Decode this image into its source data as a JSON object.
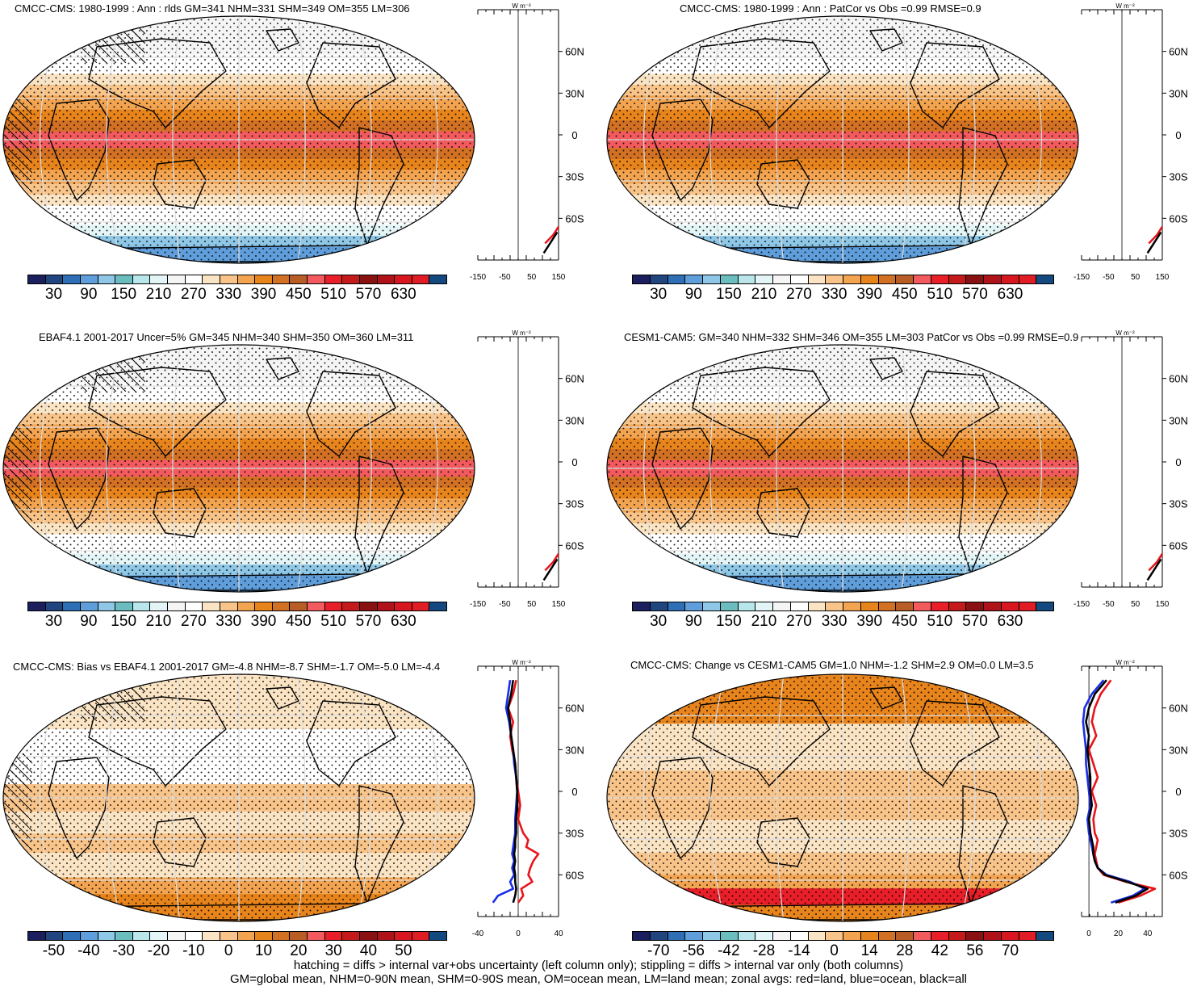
{
  "panels": [
    {
      "title": "CMCC-CMS: 1980-1999 : Ann : rlds GM=341 NHM=331 SHM=349 OM=355 LM=306",
      "colorbar": "abs",
      "kind": "abs",
      "hatch": true
    },
    {
      "title": "CMCC-CMS: 1980-1999 : Ann : PatCor vs Obs =0.99 RMSE=0.9",
      "colorbar": "abs",
      "kind": "abs",
      "hatch": false
    },
    {
      "title": "EBAF4.1 2001-2017 Uncer=5% GM=345 NHM=340 SHM=350 OM=360 LM=311",
      "colorbar": "abs",
      "kind": "abs",
      "hatch": true
    },
    {
      "title": "CESM1-CAM5: GM=340 NHM=332 SHM=346 OM=355 LM=303 PatCor vs Obs =0.99 RMSE=0.9",
      "colorbar": "abs",
      "kind": "abs",
      "hatch": false
    },
    {
      "title": "CMCC-CMS: Bias vs EBAF4.1 2001-2017 GM=-4.8 NHM=-8.7 SHM=-1.7 OM=-5.0 LM=-4.4",
      "colorbar": "bias",
      "kind": "bias",
      "hatch": true
    },
    {
      "title": "CMCC-CMS: Change vs CESM1-CAM5 GM=1.0 NHM=-1.2 SHM=2.9 OM=0.0 LM=3.5",
      "colorbar": "change",
      "kind": "change",
      "hatch": false
    }
  ],
  "colorbars": {
    "abs": {
      "labels": [
        "30",
        "90",
        "150",
        "210",
        "270",
        "330",
        "390",
        "450",
        "510",
        "570",
        "630"
      ],
      "colors": [
        "#1b1f5e",
        "#21457f",
        "#2e6fb6",
        "#5f9edb",
        "#8fc7e6",
        "#6bbdc0",
        "#b8e6ea",
        "#e3f5f6",
        "#f5f5f5",
        "#ffffff",
        "#fbe4c4",
        "#f8c48a",
        "#f3a451",
        "#e8841c",
        "#d27024",
        "#b85d25",
        "#f25a5e",
        "#e81f29",
        "#c51a1b",
        "#8a1111",
        "#b0121a",
        "#d8161f",
        "#e01c24",
        "#13497f"
      ]
    },
    "bias": {
      "labels": [
        "-50",
        "-40",
        "-30",
        "-20",
        "-10",
        "0",
        "10",
        "20",
        "30",
        "40",
        "50"
      ],
      "colors": [
        "#1b1f5e",
        "#21457f",
        "#2e6fb6",
        "#5f9edb",
        "#8fc7e6",
        "#6bbdc0",
        "#b8e6ea",
        "#e3f5f6",
        "#f5f5f5",
        "#ffffff",
        "#fbe4c4",
        "#f8c48a",
        "#f3a451",
        "#e8841c",
        "#d27024",
        "#b85d25",
        "#f25a5e",
        "#e81f29",
        "#c51a1b",
        "#8a1111",
        "#b0121a",
        "#d8161f",
        "#e01c24",
        "#13497f"
      ]
    },
    "change": {
      "labels": [
        "-70",
        "-56",
        "-42",
        "-28",
        "-14",
        "0",
        "14",
        "28",
        "42",
        "56",
        "70"
      ],
      "colors": [
        "#1b1f5e",
        "#21457f",
        "#2e6fb6",
        "#5f9edb",
        "#8fc7e6",
        "#6bbdc0",
        "#b8e6ea",
        "#e3f5f6",
        "#f5f5f5",
        "#ffffff",
        "#fbe4c4",
        "#f8c48a",
        "#f3a451",
        "#e8841c",
        "#d27024",
        "#b85d25",
        "#f25a5e",
        "#e81f29",
        "#c51a1b",
        "#8a1111",
        "#b0121a",
        "#d8161f",
        "#e01c24",
        "#13497f"
      ]
    }
  },
  "zonal_axes": {
    "units": "W m⁻²",
    "lat_ticks": [
      "60N",
      "30N",
      "0",
      "30S",
      "60S"
    ],
    "x_ticks_abs": [
      "-150",
      "-50",
      "50",
      "150"
    ],
    "x_ticks_bias": [
      "-40",
      "0",
      "40"
    ],
    "x_ticks_change": [
      "0",
      "20",
      "40"
    ]
  },
  "chart_data": [
    {
      "type": "line",
      "title": "CMCC-CMS: Bias vs EBAF4.1 2001-2017 GM=-4.8 NHM=-8.7 SHM=-1.7 OM=-5.0 LM=-4.4",
      "xlabel": "W m⁻²",
      "xlim": [
        -40,
        40
      ],
      "ylim": [
        -90,
        90
      ],
      "series": [
        {
          "name": "red=land",
          "color": "#e8141a",
          "lat": [
            -80,
            -75,
            -70,
            -65,
            -60,
            -55,
            -50,
            -45,
            -40,
            -35,
            -30,
            -20,
            -10,
            0,
            10,
            20,
            30,
            40,
            50,
            60,
            70,
            80
          ],
          "values": [
            0,
            5,
            3,
            14,
            10,
            12,
            15,
            20,
            8,
            10,
            5,
            0,
            2,
            0,
            -2,
            -3,
            -6,
            -8,
            -5,
            -10,
            -5,
            -2
          ]
        },
        {
          "name": "blue=ocean",
          "color": "#1a2ee6",
          "lat": [
            -80,
            -75,
            -70,
            -65,
            -60,
            -55,
            -50,
            -45,
            -40,
            -35,
            -30,
            -20,
            -10,
            0,
            10,
            20,
            30,
            40,
            50,
            60,
            70,
            80
          ],
          "values": [
            -25,
            -20,
            -5,
            -8,
            -4,
            -6,
            -4,
            -6,
            -5,
            -4,
            -3,
            -3,
            -2,
            -1,
            -2,
            -4,
            -5,
            -7,
            -9,
            -12,
            -10,
            -8
          ]
        },
        {
          "name": "black=all",
          "color": "#000000",
          "lat": [
            -80,
            -75,
            -70,
            -65,
            -60,
            -55,
            -50,
            -45,
            -40,
            -35,
            -30,
            -20,
            -10,
            0,
            10,
            20,
            30,
            40,
            50,
            60,
            70,
            80
          ],
          "values": [
            -5,
            -3,
            -2,
            -3,
            -3,
            -4,
            -3,
            -4,
            -3,
            -3,
            -2,
            -2,
            -1,
            -1,
            -2,
            -3,
            -5,
            -7,
            -8,
            -10,
            -7,
            -5
          ]
        }
      ]
    },
    {
      "type": "line",
      "title": "CMCC-CMS: Change vs CESM1-CAM5 GM=1.0 NHM=-1.2 SHM=2.9 OM=0.0 LM=3.5",
      "xlabel": "W m⁻²",
      "xlim": [
        -5,
        50
      ],
      "ylim": [
        -90,
        90
      ],
      "series": [
        {
          "name": "red=land",
          "color": "#e8141a",
          "lat": [
            -80,
            -75,
            -70,
            -65,
            -60,
            -55,
            -50,
            -45,
            -40,
            -35,
            -30,
            -20,
            -10,
            0,
            10,
            20,
            30,
            40,
            50,
            60,
            70,
            80
          ],
          "values": [
            20,
            35,
            45,
            25,
            10,
            6,
            5,
            4,
            5,
            6,
            4,
            3,
            5,
            2,
            6,
            3,
            0,
            5,
            2,
            4,
            8,
            15
          ]
        },
        {
          "name": "blue=ocean",
          "color": "#1a2ee6",
          "lat": [
            -80,
            -75,
            -70,
            -65,
            -60,
            -55,
            -50,
            -45,
            -40,
            -35,
            -30,
            -20,
            -10,
            0,
            10,
            20,
            30,
            40,
            50,
            60,
            70,
            80
          ],
          "values": [
            15,
            30,
            38,
            28,
            12,
            6,
            4,
            3,
            2,
            1,
            0,
            -1,
            1,
            0,
            -1,
            -2,
            -2,
            -3,
            -4,
            -3,
            2,
            10
          ]
        },
        {
          "name": "black=all",
          "color": "#000000",
          "lat": [
            -80,
            -75,
            -70,
            -65,
            -60,
            -55,
            -50,
            -45,
            -40,
            -35,
            -30,
            -20,
            -10,
            0,
            10,
            20,
            30,
            40,
            50,
            60,
            70,
            80
          ],
          "values": [
            18,
            32,
            40,
            26,
            11,
            6,
            4,
            3,
            3,
            2,
            1,
            0,
            2,
            1,
            1,
            0,
            -1,
            0,
            -2,
            0,
            4,
            12
          ]
        }
      ]
    }
  ],
  "footer": {
    "line1": "hatching = diffs > internal var+obs uncertainty (left column only); stippling = diffs > internal var only (both columns)",
    "line2": "GM=global mean, NHM=0-90N mean, SHM=0-90S mean, OM=ocean mean, LM=land mean; zonal avgs: red=land, blue=ocean, black=all"
  }
}
